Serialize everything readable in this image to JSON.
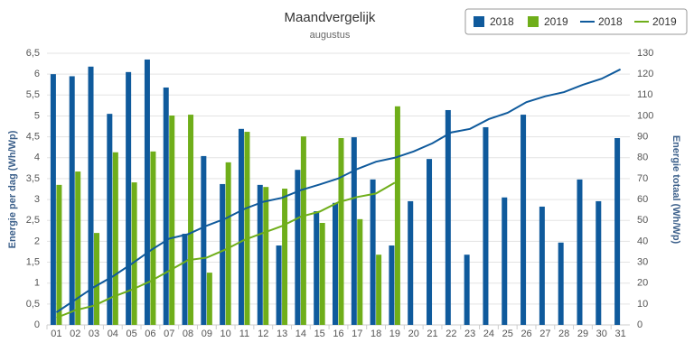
{
  "chart_data": {
    "type": "bar_line",
    "title": "Maandvergelijk",
    "subtitle": "augustus",
    "y_label": "Energie per dag (Wh/Wp)",
    "y2_label": "Energie totaal (Wh/Wp)",
    "categories": [
      "01",
      "02",
      "03",
      "04",
      "05",
      "06",
      "07",
      "08",
      "09",
      "10",
      "11",
      "12",
      "13",
      "14",
      "15",
      "16",
      "17",
      "18",
      "19",
      "20",
      "21",
      "22",
      "23",
      "24",
      "25",
      "26",
      "27",
      "28",
      "29",
      "30",
      "31"
    ],
    "ylim": [
      0,
      6.5
    ],
    "yticks": [
      0,
      {
        "value": 0.5,
        "label": "0,5"
      },
      1,
      {
        "value": 1.5,
        "label": "1,5"
      },
      2,
      {
        "value": 2.5,
        "label": "2,5"
      },
      3,
      {
        "value": 3.5,
        "label": "3,5"
      },
      4,
      {
        "value": 4.5,
        "label": "4,5"
      },
      5,
      {
        "value": 5.5,
        "label": "5,5"
      },
      6,
      {
        "value": 6.5,
        "label": "6,5"
      }
    ],
    "y2lim": [
      0,
      130
    ],
    "y2ticks": [
      0,
      10,
      20,
      30,
      40,
      50,
      60,
      70,
      80,
      90,
      100,
      110,
      120,
      130
    ],
    "grid": true,
    "legend": "top-right",
    "series": [
      {
        "name": "2018",
        "kind": "bar",
        "color": "#0f5a9c",
        "values": [
          6.0,
          5.95,
          6.18,
          5.05,
          6.05,
          6.35,
          5.68,
          2.18,
          4.04,
          3.37,
          4.69,
          3.35,
          1.9,
          3.71,
          2.72,
          2.92,
          4.49,
          3.48,
          1.9,
          2.96,
          3.97,
          5.14,
          1.68,
          4.73,
          3.05,
          5.03,
          2.83,
          1.97,
          3.48,
          2.96,
          4.47
        ]
      },
      {
        "name": "2019",
        "kind": "bar",
        "color": "#6fae1a",
        "values": [
          3.35,
          3.67,
          2.2,
          4.13,
          3.41,
          4.15,
          5.01,
          5.03,
          1.25,
          3.89,
          4.62,
          3.3,
          3.26,
          4.51,
          2.44,
          4.47,
          2.53,
          1.68,
          5.23,
          null,
          null,
          null,
          null,
          null,
          null,
          null,
          null,
          null,
          null,
          null,
          null
        ]
      },
      {
        "name": "2018",
        "kind": "line",
        "axis": "y2",
        "color": "#0f5a9c",
        "values": [
          6.0,
          12.0,
          18.1,
          23.2,
          29.2,
          35.6,
          41.3,
          43.4,
          47.5,
          50.9,
          55.5,
          58.9,
          60.8,
          64.5,
          67.2,
          70.1,
          74.6,
          78.1,
          80.0,
          83.0,
          86.9,
          92.1,
          93.8,
          98.5,
          101.5,
          106.6,
          109.4,
          111.4,
          114.9,
          117.8,
          122.3
        ]
      },
      {
        "name": "2019",
        "kind": "line",
        "axis": "y2",
        "color": "#6fae1a",
        "values": [
          3.4,
          7.0,
          9.2,
          13.4,
          16.8,
          20.9,
          25.9,
          31.0,
          32.2,
          36.1,
          40.7,
          44.0,
          47.3,
          51.8,
          54.2,
          58.7,
          61.2,
          62.9,
          68.1,
          null,
          null,
          null,
          null,
          null,
          null,
          null,
          null,
          null,
          null,
          null,
          null
        ]
      }
    ]
  }
}
